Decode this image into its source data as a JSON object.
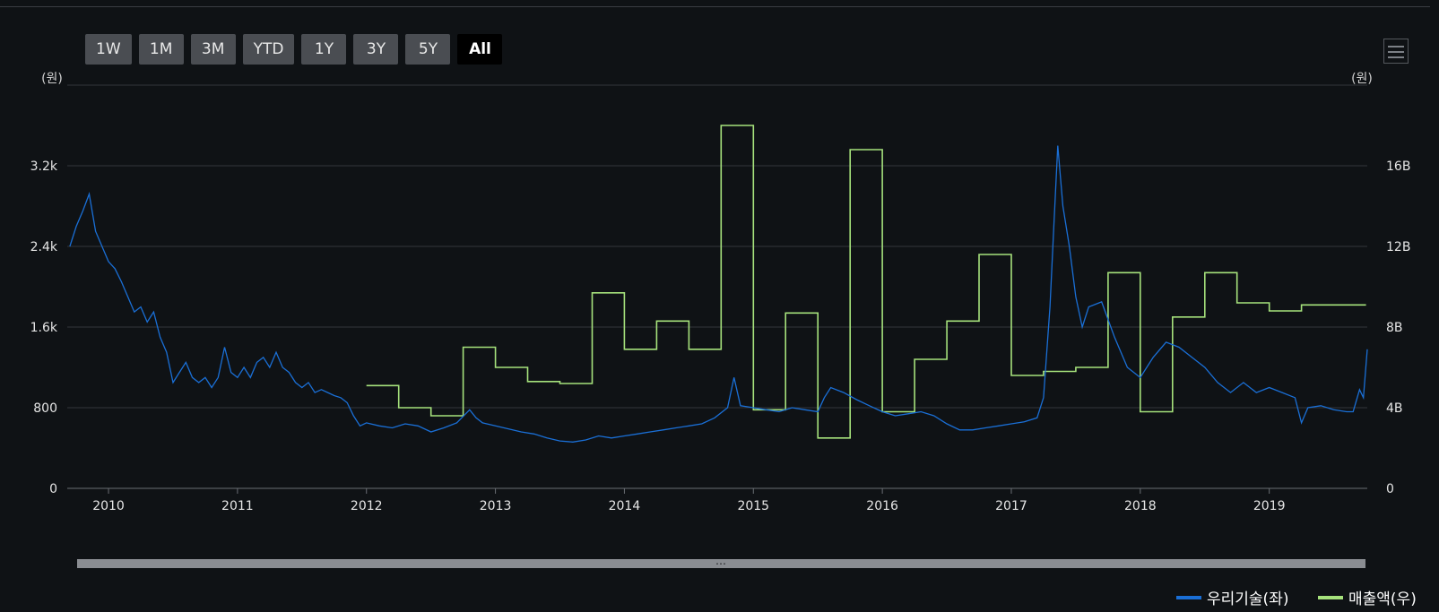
{
  "range_buttons": [
    {
      "label": "1W",
      "active": false
    },
    {
      "label": "1M",
      "active": false
    },
    {
      "label": "3M",
      "active": false
    },
    {
      "label": "YTD",
      "active": false
    },
    {
      "label": "1Y",
      "active": false
    },
    {
      "label": "3Y",
      "active": false
    },
    {
      "label": "5Y",
      "active": false
    },
    {
      "label": "All",
      "active": true
    }
  ],
  "colors": {
    "price": "#1a6fd6",
    "revenue": "#a6e27c",
    "grid": "#33373c",
    "axis_text": "#e6e6e6",
    "background": "#0f1215"
  },
  "chart_data": {
    "type": "line",
    "left_axis": {
      "unit": "(원)",
      "ticks": [
        "0",
        "800",
        "1.6k",
        "2.4k",
        "3.2k"
      ],
      "range": [
        0,
        4000
      ]
    },
    "right_axis": {
      "unit": "(원)",
      "ticks": [
        "0",
        "4B",
        "8B",
        "12B",
        "16B"
      ],
      "range": [
        0,
        20
      ]
    },
    "x_ticks": [
      "2010",
      "2011",
      "2012",
      "2013",
      "2014",
      "2015",
      "2016",
      "2017",
      "2018",
      "2019"
    ],
    "x_range": [
      2009.68,
      2019.76
    ],
    "grid": true,
    "legend_position": "bottom-right",
    "series": [
      {
        "name": "우리기술(좌)",
        "axis": "left",
        "style": "line",
        "points": [
          [
            2009.7,
            2400
          ],
          [
            2009.75,
            2600
          ],
          [
            2009.8,
            2750
          ],
          [
            2009.85,
            2920
          ],
          [
            2009.9,
            2550
          ],
          [
            2009.95,
            2400
          ],
          [
            2010.0,
            2250
          ],
          [
            2010.05,
            2180
          ],
          [
            2010.1,
            2050
          ],
          [
            2010.15,
            1900
          ],
          [
            2010.2,
            1750
          ],
          [
            2010.25,
            1800
          ],
          [
            2010.3,
            1650
          ],
          [
            2010.35,
            1750
          ],
          [
            2010.4,
            1500
          ],
          [
            2010.45,
            1350
          ],
          [
            2010.5,
            1050
          ],
          [
            2010.55,
            1150
          ],
          [
            2010.6,
            1250
          ],
          [
            2010.65,
            1100
          ],
          [
            2010.7,
            1050
          ],
          [
            2010.75,
            1100
          ],
          [
            2010.8,
            1000
          ],
          [
            2010.85,
            1100
          ],
          [
            2010.9,
            1400
          ],
          [
            2010.95,
            1150
          ],
          [
            2011.0,
            1100
          ],
          [
            2011.05,
            1200
          ],
          [
            2011.1,
            1100
          ],
          [
            2011.15,
            1250
          ],
          [
            2011.2,
            1300
          ],
          [
            2011.25,
            1200
          ],
          [
            2011.3,
            1350
          ],
          [
            2011.35,
            1200
          ],
          [
            2011.4,
            1150
          ],
          [
            2011.45,
            1050
          ],
          [
            2011.5,
            1000
          ],
          [
            2011.55,
            1050
          ],
          [
            2011.6,
            950
          ],
          [
            2011.65,
            980
          ],
          [
            2011.7,
            950
          ],
          [
            2011.75,
            920
          ],
          [
            2011.8,
            900
          ],
          [
            2011.85,
            850
          ],
          [
            2011.9,
            720
          ],
          [
            2011.95,
            620
          ],
          [
            2012.0,
            650
          ],
          [
            2012.1,
            620
          ],
          [
            2012.2,
            600
          ],
          [
            2012.3,
            640
          ],
          [
            2012.4,
            620
          ],
          [
            2012.5,
            560
          ],
          [
            2012.6,
            600
          ],
          [
            2012.7,
            650
          ],
          [
            2012.8,
            780
          ],
          [
            2012.85,
            700
          ],
          [
            2012.9,
            650
          ],
          [
            2013.0,
            620
          ],
          [
            2013.1,
            590
          ],
          [
            2013.2,
            560
          ],
          [
            2013.3,
            540
          ],
          [
            2013.4,
            500
          ],
          [
            2013.5,
            470
          ],
          [
            2013.6,
            460
          ],
          [
            2013.7,
            480
          ],
          [
            2013.8,
            520
          ],
          [
            2013.9,
            500
          ],
          [
            2014.0,
            520
          ],
          [
            2014.1,
            540
          ],
          [
            2014.2,
            560
          ],
          [
            2014.3,
            580
          ],
          [
            2014.4,
            600
          ],
          [
            2014.5,
            620
          ],
          [
            2014.6,
            640
          ],
          [
            2014.7,
            700
          ],
          [
            2014.8,
            800
          ],
          [
            2014.85,
            1100
          ],
          [
            2014.9,
            820
          ],
          [
            2015.0,
            800
          ],
          [
            2015.1,
            780
          ],
          [
            2015.2,
            760
          ],
          [
            2015.3,
            800
          ],
          [
            2015.4,
            780
          ],
          [
            2015.5,
            760
          ],
          [
            2015.55,
            900
          ],
          [
            2015.6,
            1000
          ],
          [
            2015.7,
            950
          ],
          [
            2015.8,
            880
          ],
          [
            2015.9,
            820
          ],
          [
            2016.0,
            760
          ],
          [
            2016.1,
            720
          ],
          [
            2016.2,
            740
          ],
          [
            2016.3,
            760
          ],
          [
            2016.4,
            720
          ],
          [
            2016.5,
            640
          ],
          [
            2016.6,
            580
          ],
          [
            2016.7,
            580
          ],
          [
            2016.8,
            600
          ],
          [
            2016.9,
            620
          ],
          [
            2017.0,
            640
          ],
          [
            2017.1,
            660
          ],
          [
            2017.2,
            700
          ],
          [
            2017.25,
            900
          ],
          [
            2017.3,
            1800
          ],
          [
            2017.33,
            2600
          ],
          [
            2017.36,
            3400
          ],
          [
            2017.4,
            2800
          ],
          [
            2017.45,
            2400
          ],
          [
            2017.5,
            1900
          ],
          [
            2017.55,
            1600
          ],
          [
            2017.6,
            1800
          ],
          [
            2017.7,
            1850
          ],
          [
            2017.8,
            1500
          ],
          [
            2017.9,
            1200
          ],
          [
            2018.0,
            1100
          ],
          [
            2018.1,
            1300
          ],
          [
            2018.2,
            1450
          ],
          [
            2018.3,
            1400
          ],
          [
            2018.4,
            1300
          ],
          [
            2018.5,
            1200
          ],
          [
            2018.6,
            1050
          ],
          [
            2018.7,
            950
          ],
          [
            2018.8,
            1050
          ],
          [
            2018.9,
            950
          ],
          [
            2019.0,
            1000
          ],
          [
            2019.1,
            950
          ],
          [
            2019.2,
            900
          ],
          [
            2019.25,
            650
          ],
          [
            2019.3,
            800
          ],
          [
            2019.4,
            820
          ],
          [
            2019.5,
            780
          ],
          [
            2019.6,
            760
          ],
          [
            2019.65,
            760
          ],
          [
            2019.7,
            980
          ],
          [
            2019.73,
            900
          ],
          [
            2019.76,
            1380
          ]
        ]
      },
      {
        "name": "매출액(우)",
        "axis": "right",
        "style": "step",
        "points": [
          [
            2012.0,
            5.1
          ],
          [
            2012.25,
            4.0
          ],
          [
            2012.5,
            3.6
          ],
          [
            2012.75,
            7.0
          ],
          [
            2013.0,
            6.0
          ],
          [
            2013.25,
            5.3
          ],
          [
            2013.5,
            5.2
          ],
          [
            2013.75,
            9.7
          ],
          [
            2014.0,
            6.9
          ],
          [
            2014.25,
            8.3
          ],
          [
            2014.5,
            6.9
          ],
          [
            2014.75,
            18.0
          ],
          [
            2015.0,
            3.9
          ],
          [
            2015.25,
            8.7
          ],
          [
            2015.5,
            2.5
          ],
          [
            2015.75,
            16.8
          ],
          [
            2016.0,
            3.8
          ],
          [
            2016.25,
            6.4
          ],
          [
            2016.5,
            8.3
          ],
          [
            2016.75,
            11.6
          ],
          [
            2017.0,
            5.6
          ],
          [
            2017.25,
            5.8
          ],
          [
            2017.5,
            6.0
          ],
          [
            2017.75,
            10.7
          ],
          [
            2018.0,
            3.8
          ],
          [
            2018.25,
            8.5
          ],
          [
            2018.5,
            10.7
          ],
          [
            2018.75,
            9.2
          ],
          [
            2019.0,
            8.8
          ],
          [
            2019.25,
            9.1
          ],
          [
            2019.5,
            9.1
          ]
        ]
      }
    ]
  }
}
